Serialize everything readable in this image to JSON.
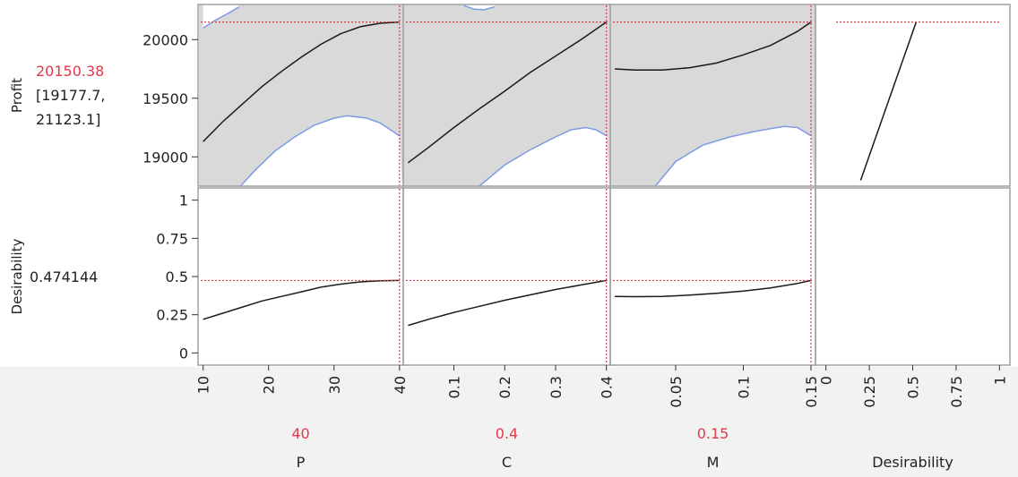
{
  "chart_data": {
    "type": "line",
    "title": "",
    "colors": {
      "curve": "#1a1a1a",
      "confidence_band_fill": "#d9d9d9",
      "confidence_band_edge": "#7d9ae6",
      "crosshair": "#e0394a",
      "current_value_text": "#e0394a",
      "panel_border": "#a0a0a0",
      "footer_background": "#f2f2f2"
    },
    "responses": [
      {
        "name": "Profit",
        "current_value": "20150.38",
        "interval_line1": "[19177.7,",
        "interval_line2": "21123.1]",
        "ylim": [
          18750,
          20300
        ],
        "ticks": [
          "20000",
          "19500",
          "19000"
        ],
        "tick_values": [
          20000,
          19500,
          19000
        ],
        "crosshair_y": 20150.38
      },
      {
        "name": "Desirability",
        "current_value": "0.474144",
        "ylim": [
          -0.08,
          1.08
        ],
        "ticks": [
          "1",
          "0.75",
          "0.5",
          "0.25",
          "0"
        ],
        "tick_values": [
          1,
          0.75,
          0.5,
          0.25,
          0
        ],
        "crosshair_y": 0.474144
      }
    ],
    "factors": [
      {
        "name": "P",
        "current_value": "40",
        "xlim": [
          9.5,
          40.3
        ],
        "ticks": [
          "10",
          "20",
          "30",
          "40"
        ],
        "tick_values": [
          10,
          20,
          30,
          40
        ],
        "crosshair_x": 40,
        "profit_curve": [
          [
            10,
            19130
          ],
          [
            13,
            19300
          ],
          [
            16,
            19450
          ],
          [
            19,
            19600
          ],
          [
            22,
            19730
          ],
          [
            25,
            19850
          ],
          [
            28,
            19960
          ],
          [
            31,
            20050
          ],
          [
            34,
            20110
          ],
          [
            37,
            20140
          ],
          [
            40,
            20150
          ]
        ],
        "profit_lower": [
          [
            15.7,
            18750
          ],
          [
            18,
            18890
          ],
          [
            21,
            19050
          ],
          [
            24,
            19170
          ],
          [
            27,
            19270
          ],
          [
            30,
            19330
          ],
          [
            32,
            19350
          ],
          [
            35,
            19330
          ],
          [
            37,
            19290
          ],
          [
            40,
            19180
          ]
        ],
        "profit_upper": [
          [
            10,
            20100
          ],
          [
            12,
            20170
          ],
          [
            14,
            20230
          ],
          [
            15.5,
            20280
          ]
        ],
        "desirability_curve": [
          [
            10,
            0.22
          ],
          [
            13,
            0.26
          ],
          [
            16,
            0.3
          ],
          [
            19,
            0.34
          ],
          [
            22,
            0.37
          ],
          [
            25,
            0.4
          ],
          [
            28,
            0.43
          ],
          [
            31,
            0.45
          ],
          [
            34,
            0.465
          ],
          [
            37,
            0.472
          ],
          [
            40,
            0.474
          ]
        ]
      },
      {
        "name": "C",
        "current_value": "0.4",
        "xlim": [
          0.004,
          0.404
        ],
        "ticks": [
          "0.1",
          "0.2",
          "0.3",
          "0.4"
        ],
        "tick_values": [
          0.1,
          0.2,
          0.3,
          0.4
        ],
        "crosshair_x": 0.4,
        "profit_curve": [
          [
            0.01,
            18950
          ],
          [
            0.05,
            19080
          ],
          [
            0.1,
            19250
          ],
          [
            0.15,
            19410
          ],
          [
            0.2,
            19560
          ],
          [
            0.25,
            19720
          ],
          [
            0.3,
            19860
          ],
          [
            0.35,
            20000
          ],
          [
            0.4,
            20150
          ]
        ],
        "profit_lower": [
          [
            0.15,
            18750
          ],
          [
            0.2,
            18930
          ],
          [
            0.25,
            19060
          ],
          [
            0.3,
            19170
          ],
          [
            0.33,
            19230
          ],
          [
            0.36,
            19250
          ],
          [
            0.38,
            19230
          ],
          [
            0.4,
            19180
          ]
        ],
        "profit_upper": [
          [
            0.12,
            20290
          ],
          [
            0.14,
            20260
          ],
          [
            0.16,
            20255
          ],
          [
            0.18,
            20280
          ]
        ],
        "desirability_curve": [
          [
            0.01,
            0.18
          ],
          [
            0.05,
            0.22
          ],
          [
            0.1,
            0.265
          ],
          [
            0.15,
            0.305
          ],
          [
            0.2,
            0.345
          ],
          [
            0.25,
            0.38
          ],
          [
            0.3,
            0.415
          ],
          [
            0.35,
            0.445
          ],
          [
            0.4,
            0.474
          ]
        ]
      },
      {
        "name": "M",
        "current_value": "0.15",
        "xlim": [
          0.003,
          0.152
        ],
        "ticks": [
          "0.05",
          "0.1",
          "0.15"
        ],
        "tick_values": [
          0.05,
          0.1,
          0.15
        ],
        "crosshair_x": 0.15,
        "profit_curve": [
          [
            0.005,
            19750
          ],
          [
            0.02,
            19740
          ],
          [
            0.04,
            19740
          ],
          [
            0.06,
            19760
          ],
          [
            0.08,
            19800
          ],
          [
            0.1,
            19870
          ],
          [
            0.12,
            19950
          ],
          [
            0.14,
            20070
          ],
          [
            0.15,
            20150
          ]
        ],
        "profit_lower": [
          [
            0.035,
            18750
          ],
          [
            0.05,
            18960
          ],
          [
            0.07,
            19100
          ],
          [
            0.09,
            19170
          ],
          [
            0.11,
            19220
          ],
          [
            0.13,
            19260
          ],
          [
            0.14,
            19250
          ],
          [
            0.15,
            19180
          ]
        ],
        "profit_upper": [],
        "desirability_curve": [
          [
            0.005,
            0.37
          ],
          [
            0.02,
            0.368
          ],
          [
            0.04,
            0.37
          ],
          [
            0.06,
            0.378
          ],
          [
            0.08,
            0.39
          ],
          [
            0.1,
            0.405
          ],
          [
            0.12,
            0.425
          ],
          [
            0.14,
            0.455
          ],
          [
            0.15,
            0.474
          ]
        ]
      },
      {
        "name": "Desirability",
        "current_value": "",
        "xlim": [
          -0.05,
          1.05
        ],
        "ticks": [
          "0",
          "0.25",
          "0.5",
          "0.75",
          "1"
        ],
        "tick_values": [
          0,
          0.25,
          0.5,
          0.75,
          1
        ],
        "profit_curve": [
          [
            0.2,
            18800
          ],
          [
            0.52,
            20150
          ]
        ],
        "desirability_curve": []
      }
    ]
  }
}
